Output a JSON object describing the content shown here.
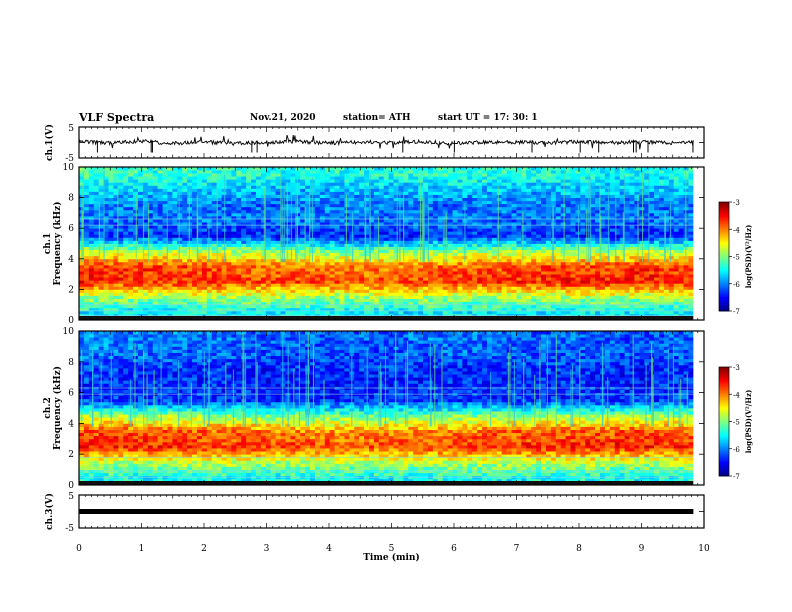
{
  "header": {
    "title": "VLF Spectra",
    "date": "Nov.21, 2020",
    "station": "station= ATH",
    "start": "start  UT  =   17: 30: 1"
  },
  "chart_data": [
    {
      "type": "line",
      "panel": "ch1-waveform",
      "ylabel": "ch.1(V)",
      "ylim": [
        -5,
        5
      ],
      "yticks": [
        "5",
        "-5"
      ],
      "x": [
        0,
        0.5,
        1,
        1.5,
        2,
        2.5,
        3,
        3.5,
        4,
        4.5,
        5,
        5.5,
        6,
        6.5,
        7,
        7.5,
        8,
        8.5,
        9,
        9.5,
        9.83
      ],
      "series": [
        {
          "values": [
            0.3,
            -0.2,
            0.4,
            -0.3,
            0.2,
            -0.4,
            0.1,
            0.3,
            -0.2,
            0.2,
            -0.1,
            0.3,
            -0.3,
            0.2,
            0.1,
            -0.2,
            0.3,
            -0.1,
            0.2,
            -0.2,
            0.1
          ]
        }
      ],
      "xlim": [
        0,
        10
      ]
    },
    {
      "type": "heatmap",
      "panel": "ch1-spectrogram",
      "ylabel": "ch.1 Frequency (kHz)",
      "ylim": [
        0,
        10
      ],
      "yticks": [
        "0",
        "2",
        "4",
        "6",
        "8",
        "10"
      ],
      "xlim": [
        0,
        10
      ],
      "x": [
        0,
        1,
        2,
        3,
        4,
        5,
        6,
        7,
        8,
        9,
        9.83
      ],
      "y": [
        0.5,
        1.5,
        2.5,
        3.5,
        4.5,
        5.5,
        6.5,
        7.5,
        8.5,
        9.5
      ],
      "colorbar": {
        "label": "log(PSD)(V²/Hz)",
        "range": [
          -7,
          -3
        ],
        "ticks": [
          "-3",
          "-4",
          "-5",
          "-6",
          "-7"
        ]
      },
      "z": [
        [
          -5.5,
          -5.6,
          -5.5,
          -5.6,
          -5.5,
          -5.6,
          -5.5,
          -5.6,
          -5.5,
          -5.6,
          -5.5
        ],
        [
          -4.8,
          -4.9,
          -4.8,
          -4.8,
          -4.9,
          -4.8,
          -4.9,
          -4.8,
          -4.8,
          -4.9,
          -4.8
        ],
        [
          -3.6,
          -3.7,
          -3.7,
          -3.8,
          -3.8,
          -3.8,
          -3.7,
          -3.7,
          -3.6,
          -3.6,
          -3.7
        ],
        [
          -3.7,
          -3.7,
          -3.8,
          -3.9,
          -4.0,
          -4.0,
          -3.9,
          -3.8,
          -3.8,
          -3.7,
          -3.8
        ],
        [
          -4.7,
          -4.8,
          -4.8,
          -4.9,
          -5.0,
          -5.0,
          -4.9,
          -4.8,
          -4.8,
          -4.8,
          -4.8
        ],
        [
          -6.3,
          -6.3,
          -6.4,
          -6.4,
          -6.4,
          -6.4,
          -6.3,
          -6.3,
          -6.4,
          -6.4,
          -6.3
        ],
        [
          -6.0,
          -6.1,
          -6.0,
          -6.1,
          -6.0,
          -6.1,
          -6.0,
          -6.1,
          -6.0,
          -6.1,
          -6.0
        ],
        [
          -5.9,
          -6.0,
          -6.0,
          -6.1,
          -6.0,
          -6.0,
          -6.1,
          -6.0,
          -6.0,
          -6.1,
          -6.0
        ],
        [
          -5.6,
          -5.7,
          -5.7,
          -5.8,
          -5.8,
          -5.8,
          -5.7,
          -5.8,
          -5.7,
          -5.8,
          -5.7
        ],
        [
          -5.2,
          -5.3,
          -5.3,
          -5.4,
          -5.4,
          -5.4,
          -5.3,
          -5.4,
          -5.4,
          -5.5,
          -5.4
        ]
      ]
    },
    {
      "type": "heatmap",
      "panel": "ch2-spectrogram",
      "ylabel": "ch.2 Frequency (kHz)",
      "ylim": [
        0,
        10
      ],
      "yticks": [
        "0",
        "2",
        "4",
        "6",
        "8",
        "10"
      ],
      "xlim": [
        0,
        10
      ],
      "x": [
        0,
        1,
        2,
        3,
        4,
        5,
        6,
        7,
        8,
        9,
        9.83
      ],
      "y": [
        0.5,
        1.5,
        2.5,
        3.5,
        4.5,
        5.5,
        6.5,
        7.5,
        8.5,
        9.5
      ],
      "colorbar": {
        "label": "log(PSD)(V²/Hz)",
        "range": [
          -7,
          -3
        ],
        "ticks": [
          "-3",
          "-4",
          "-5",
          "-6",
          "-7"
        ]
      },
      "z": [
        [
          -5.4,
          -5.5,
          -5.4,
          -5.5,
          -5.4,
          -5.5,
          -5.4,
          -5.5,
          -5.4,
          -5.5,
          -5.4
        ],
        [
          -4.7,
          -4.8,
          -4.7,
          -4.8,
          -4.8,
          -4.8,
          -4.8,
          -4.7,
          -4.7,
          -4.8,
          -4.7
        ],
        [
          -3.6,
          -3.6,
          -3.7,
          -3.7,
          -3.8,
          -3.8,
          -3.7,
          -3.7,
          -3.6,
          -3.6,
          -3.7
        ],
        [
          -3.8,
          -3.8,
          -3.9,
          -4.0,
          -4.1,
          -4.1,
          -4.0,
          -3.9,
          -3.9,
          -3.8,
          -3.9
        ],
        [
          -4.8,
          -4.9,
          -4.9,
          -5.0,
          -5.1,
          -5.1,
          -5.0,
          -4.9,
          -4.9,
          -4.9,
          -4.9
        ],
        [
          -6.2,
          -6.3,
          -6.3,
          -6.3,
          -6.3,
          -6.3,
          -6.3,
          -6.3,
          -6.3,
          -6.3,
          -6.2
        ],
        [
          -6.3,
          -6.4,
          -6.3,
          -6.4,
          -6.4,
          -6.4,
          -6.3,
          -6.4,
          -6.3,
          -6.4,
          -6.3
        ],
        [
          -6.2,
          -6.3,
          -6.3,
          -6.4,
          -6.3,
          -6.3,
          -6.4,
          -6.3,
          -6.3,
          -6.4,
          -6.3
        ],
        [
          -6.0,
          -6.1,
          -6.1,
          -6.2,
          -6.2,
          -6.2,
          -6.1,
          -6.2,
          -6.1,
          -6.2,
          -6.1
        ],
        [
          -5.9,
          -6.0,
          -6.0,
          -6.1,
          -6.1,
          -6.1,
          -6.0,
          -6.1,
          -6.1,
          -6.2,
          -6.1
        ]
      ]
    },
    {
      "type": "line",
      "panel": "ch3-waveform",
      "ylabel": "ch.3(V)",
      "ylim": [
        -5,
        5
      ],
      "yticks": [
        "5",
        "-5"
      ],
      "xlabel": "Time (min)",
      "xlim": [
        0,
        10
      ],
      "xticks": [
        "0",
        "1",
        "2",
        "3",
        "4",
        "5",
        "6",
        "7",
        "8",
        "9",
        "10"
      ],
      "x": [
        0,
        9.83
      ],
      "series": [
        {
          "values": [
            0,
            0
          ]
        }
      ]
    }
  ]
}
